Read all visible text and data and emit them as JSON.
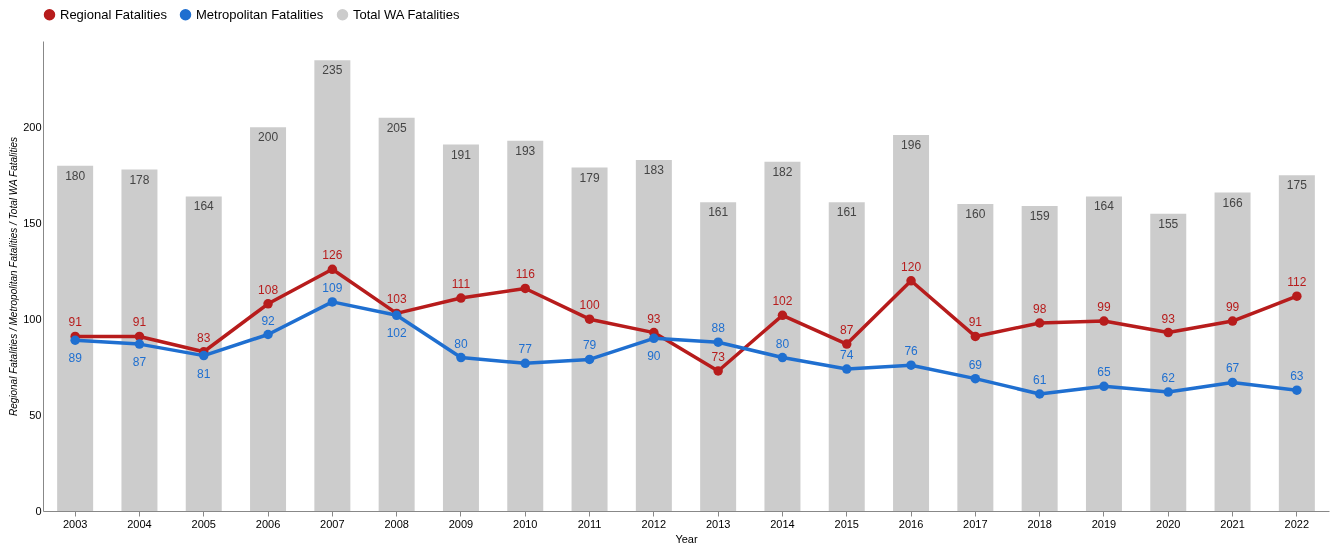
{
  "chart_data": {
    "type": "bar",
    "xlabel": "Year",
    "ylabel": "Regional Fatalities / Metropolitan Fatalities / Total WA Fatalities",
    "categories": [
      "2003",
      "2004",
      "2005",
      "2006",
      "2007",
      "2008",
      "2009",
      "2010",
      "2011",
      "2012",
      "2013",
      "2014",
      "2015",
      "2016",
      "2017",
      "2018",
      "2019",
      "2020",
      "2021",
      "2022"
    ],
    "series": [
      {
        "name": "Regional Fatalities",
        "type": "line",
        "color": "#b71c1c",
        "values": [
          91,
          91,
          83,
          108,
          126,
          103,
          111,
          116,
          100,
          93,
          73,
          102,
          87,
          120,
          91,
          98,
          99,
          93,
          99,
          112
        ]
      },
      {
        "name": "Metropolitan Fatalities",
        "type": "line",
        "color": "#1f6fd0",
        "values": [
          89,
          87,
          81,
          92,
          109,
          102,
          80,
          77,
          79,
          90,
          88,
          80,
          74,
          76,
          69,
          61,
          65,
          62,
          67,
          63
        ]
      },
      {
        "name": "Total WA Fatalities",
        "color": "#cccccc",
        "values": [
          180,
          178,
          164,
          200,
          235,
          205,
          191,
          193,
          179,
          183,
          161,
          182,
          161,
          196,
          160,
          159,
          164,
          155,
          166,
          175
        ]
      }
    ],
    "ylim": [
      0,
      245
    ],
    "yticks": [
      0,
      50,
      100,
      150,
      200
    ],
    "grid": false,
    "legend": "top left",
    "marker": "circle",
    "line_style": "solid",
    "data_labels": true
  }
}
